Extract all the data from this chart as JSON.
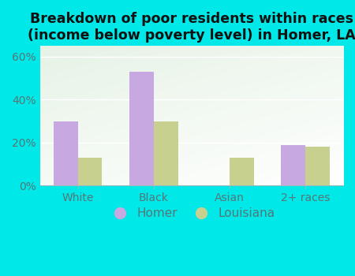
{
  "title": "Breakdown of poor residents within races\n(income below poverty level) in Homer, LA",
  "categories": [
    "White",
    "Black",
    "Asian",
    "2+ races"
  ],
  "homer_values": [
    30,
    53,
    0,
    19
  ],
  "louisiana_values": [
    13,
    30,
    13,
    18
  ],
  "homer_color": "#c8a8e0",
  "louisiana_color": "#c8d090",
  "background_color": "#00e8e8",
  "ylim": [
    0,
    65
  ],
  "yticks": [
    0,
    20,
    40,
    60
  ],
  "ytick_labels": [
    "0%",
    "20%",
    "40%",
    "60%"
  ],
  "title_fontsize": 12.5,
  "tick_fontsize": 10,
  "legend_fontsize": 11,
  "bar_width": 0.32
}
